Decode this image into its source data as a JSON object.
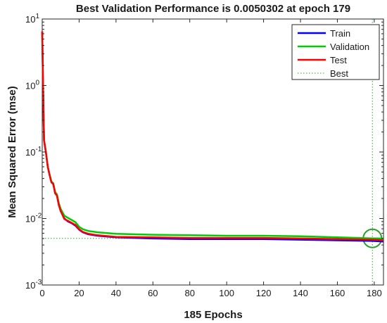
{
  "chart_data": {
    "type": "line",
    "title": "Best Validation Performance is 0.0050302 at epoch 179",
    "xlabel": "185 Epochs",
    "ylabel": "Mean Squared Error  (mse)",
    "yscale": "log",
    "xlim": [
      0,
      185
    ],
    "ylim": [
      0.001,
      10
    ],
    "xticks": [
      0,
      20,
      40,
      60,
      80,
      100,
      120,
      140,
      160,
      180
    ],
    "yticks": [
      {
        "value": 0.001,
        "base": "10",
        "exp": "-3"
      },
      {
        "value": 0.01,
        "base": "10",
        "exp": "-2"
      },
      {
        "value": 0.1,
        "base": "10",
        "exp": "-1"
      },
      {
        "value": 1,
        "base": "10",
        "exp": "0"
      },
      {
        "value": 10,
        "base": "10",
        "exp": "1"
      }
    ],
    "grid": false,
    "legend_position": "top-right",
    "series": [
      {
        "name": "Train",
        "color": "#0000ff",
        "x": [
          0,
          0.5,
          1,
          2,
          3,
          4,
          5,
          6,
          7,
          8,
          9,
          10,
          12,
          14,
          16,
          18,
          20,
          22,
          25,
          30,
          40,
          60,
          80,
          100,
          120,
          140,
          160,
          179,
          185
        ],
        "y": [
          6.5,
          0.8,
          0.15,
          0.1,
          0.06,
          0.045,
          0.035,
          0.033,
          0.024,
          0.022,
          0.016,
          0.013,
          0.01,
          0.009,
          0.0085,
          0.0078,
          0.0068,
          0.0062,
          0.0058,
          0.0055,
          0.0052,
          0.005,
          0.0049,
          0.0049,
          0.0049,
          0.0048,
          0.0047,
          0.0046,
          0.0045
        ]
      },
      {
        "name": "Validation",
        "color": "#00cc00",
        "x": [
          0,
          0.5,
          1,
          2,
          3,
          4,
          5,
          6,
          7,
          8,
          9,
          10,
          12,
          14,
          16,
          18,
          20,
          22,
          25,
          30,
          40,
          60,
          80,
          100,
          120,
          140,
          160,
          179,
          185
        ],
        "y": [
          6.5,
          0.8,
          0.15,
          0.1,
          0.06,
          0.046,
          0.036,
          0.034,
          0.025,
          0.023,
          0.017,
          0.014,
          0.011,
          0.0102,
          0.0095,
          0.0088,
          0.0075,
          0.0069,
          0.0065,
          0.0062,
          0.0059,
          0.0057,
          0.0056,
          0.0055,
          0.0055,
          0.0054,
          0.0052,
          0.00503,
          0.005
        ]
      },
      {
        "name": "Test",
        "color": "#ff0000",
        "x": [
          0,
          0.5,
          1,
          2,
          3,
          4,
          5,
          6,
          7,
          8,
          9,
          10,
          12,
          14,
          16,
          18,
          20,
          22,
          25,
          30,
          40,
          60,
          80,
          100,
          120,
          140,
          160,
          179,
          185
        ],
        "y": [
          6.5,
          0.8,
          0.15,
          0.1,
          0.06,
          0.045,
          0.035,
          0.033,
          0.024,
          0.022,
          0.016,
          0.013,
          0.0098,
          0.0092,
          0.0086,
          0.008,
          0.0069,
          0.0063,
          0.0059,
          0.0056,
          0.0053,
          0.0052,
          0.0051,
          0.0051,
          0.0051,
          0.005,
          0.0049,
          0.0048,
          0.0047
        ]
      }
    ],
    "best": {
      "name": "Best",
      "color": "#2ca02c",
      "epoch": 179,
      "value": 0.0050302
    }
  }
}
